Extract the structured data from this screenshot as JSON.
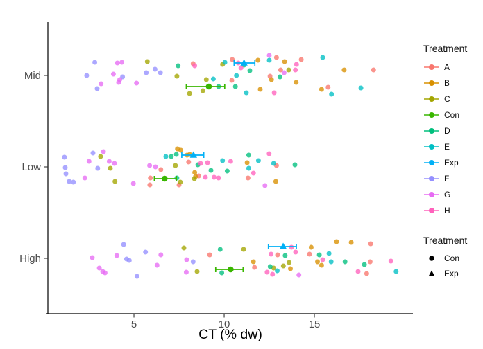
{
  "legend": {
    "title": "Treatment",
    "items": [
      {
        "label": "A",
        "color": "#F8766D"
      },
      {
        "label": "B",
        "color": "#D89000"
      },
      {
        "label": "C",
        "color": "#A3A500"
      },
      {
        "label": "Con",
        "color": "#39B600"
      },
      {
        "label": "D",
        "color": "#00BF7D"
      },
      {
        "label": "E",
        "color": "#00BFC4"
      },
      {
        "label": "Exp",
        "color": "#00B0F6"
      },
      {
        "label": "F",
        "color": "#9590FF"
      },
      {
        "label": "G",
        "color": "#E76BF3"
      },
      {
        "label": "H",
        "color": "#FF62BC"
      }
    ],
    "shape_title": "Treatment",
    "shape_items": [
      {
        "label": "Con",
        "shape": "circle"
      },
      {
        "label": "Exp",
        "shape": "triangle"
      }
    ]
  },
  "chart_data": {
    "type": "scatter",
    "title": "",
    "xlabel": "CT (% dw)",
    "ylabel": "",
    "x_ticks": [
      5,
      10,
      15
    ],
    "xlim": [
      0.23,
      20.46
    ],
    "grid": false,
    "legend_position": "right",
    "categories": [
      "Mid",
      "Low",
      "High"
    ],
    "treatments": [
      "A",
      "B",
      "C",
      "Con",
      "D",
      "E",
      "Exp",
      "F",
      "G",
      "H"
    ],
    "colors": {
      "A": "#F8766D",
      "B": "#D89000",
      "C": "#A3A500",
      "Con": "#39B600",
      "D": "#00BF7D",
      "E": "#00BFC4",
      "Exp": "#00B0F6",
      "F": "#9590FF",
      "G": "#E76BF3",
      "H": "#FF62BC"
    },
    "point_style": {
      "radius": 3.5,
      "opacity": 0.78
    },
    "points": {
      "Mid": [
        [
          "A",
          8.28,
          -17
        ],
        [
          "A",
          10.42,
          7
        ],
        [
          "A",
          10.45,
          -23
        ],
        [
          "A",
          12.54,
          1
        ],
        [
          "A",
          12.9,
          -26
        ],
        [
          "A",
          13.13,
          -8
        ],
        [
          "A",
          14.27,
          -23
        ],
        [
          "A",
          15.76,
          17
        ],
        [
          "A",
          18.28,
          -8
        ],
        [
          "B",
          11.87,
          -22
        ],
        [
          "B",
          12.0,
          20
        ],
        [
          "B",
          12.62,
          6
        ],
        [
          "B",
          13.35,
          -20
        ],
        [
          "B",
          13.99,
          10
        ],
        [
          "B",
          15.4,
          20
        ],
        [
          "B",
          16.65,
          -8
        ],
        [
          "C",
          5.74,
          -20
        ],
        [
          "C",
          7.38,
          1
        ],
        [
          "C",
          8.08,
          26
        ],
        [
          "C",
          8.82,
          22
        ],
        [
          "C",
          9.01,
          6
        ],
        [
          "C",
          9.91,
          -16
        ],
        [
          "C",
          13.58,
          -8
        ],
        [
          "D",
          7.45,
          -14
        ],
        [
          "D",
          9.69,
          16
        ],
        [
          "D",
          10.62,
          16
        ],
        [
          "D",
          11.1,
          -15
        ],
        [
          "D",
          11.42,
          -7
        ],
        [
          "D",
          13.09,
          2
        ],
        [
          "E",
          9.4,
          5
        ],
        [
          "E",
          10.04,
          -19
        ],
        [
          "E",
          10.68,
          0
        ],
        [
          "E",
          11.23,
          25
        ],
        [
          "E",
          12.5,
          -22
        ],
        [
          "E",
          15.46,
          -26
        ],
        [
          "E",
          15.95,
          27
        ],
        [
          "E",
          17.58,
          18
        ],
        [
          "F",
          2.38,
          0
        ],
        [
          "F",
          2.83,
          -19
        ],
        [
          "F",
          2.96,
          19
        ],
        [
          "F",
          4.37,
          2
        ],
        [
          "F",
          5.68,
          -4
        ],
        [
          "F",
          6.17,
          -9
        ],
        [
          "F",
          6.47,
          -4
        ],
        [
          "G",
          3.18,
          12
        ],
        [
          "G",
          3.86,
          -2
        ],
        [
          "G",
          4.08,
          -18
        ],
        [
          "G",
          4.33,
          -19
        ],
        [
          "G",
          4.15,
          10
        ],
        [
          "G",
          4.21,
          6
        ],
        [
          "G",
          5.14,
          11
        ],
        [
          "G",
          12.5,
          -29
        ],
        [
          "G",
          13.32,
          -4
        ],
        [
          "H",
          8.37,
          -14
        ],
        [
          "H",
          10.78,
          -18
        ],
        [
          "H",
          10.93,
          -11
        ],
        [
          "H",
          12.77,
          25
        ],
        [
          "H",
          13.95,
          -8
        ],
        [
          "H",
          14.01,
          -16
        ]
      ],
      "Low": [
        [
          "A",
          5.88,
          26
        ],
        [
          "A",
          5.91,
          16
        ],
        [
          "A",
          6.49,
          4
        ],
        [
          "A",
          7.5,
          26
        ],
        [
          "A",
          8.03,
          -7
        ],
        [
          "A",
          8.59,
          13
        ],
        [
          "A",
          11.32,
          16
        ],
        [
          "A",
          12.9,
          -2
        ],
        [
          "B",
          7.41,
          -26
        ],
        [
          "B",
          7.6,
          -24
        ],
        [
          "B",
          7.94,
          -17
        ],
        [
          "B",
          8.09,
          -18
        ],
        [
          "B",
          8.37,
          8
        ],
        [
          "B",
          8.41,
          14
        ],
        [
          "B",
          11.27,
          -6
        ],
        [
          "B",
          12.86,
          21
        ],
        [
          "C",
          3.15,
          -15
        ],
        [
          "C",
          3.69,
          2
        ],
        [
          "C",
          3.95,
          21
        ],
        [
          "C",
          7.3,
          -2
        ],
        [
          "C",
          7.57,
          22
        ],
        [
          "C",
          8.35,
          17
        ],
        [
          "D",
          7.07,
          -15
        ],
        [
          "D",
          7.35,
          -18
        ],
        [
          "D",
          7.38,
          16
        ],
        [
          "D",
          8.54,
          -3
        ],
        [
          "D",
          9.27,
          5
        ],
        [
          "D",
          10.17,
          6
        ],
        [
          "D",
          11.36,
          -17
        ],
        [
          "D",
          13.92,
          -3
        ],
        [
          "E",
          6.77,
          -15
        ],
        [
          "E",
          9.91,
          -9
        ],
        [
          "E",
          11.36,
          2
        ],
        [
          "E",
          11.9,
          -9
        ],
        [
          "E",
          12.74,
          -5
        ],
        [
          "F",
          1.15,
          -14
        ],
        [
          "F",
          1.19,
          1
        ],
        [
          "F",
          1.23,
          10
        ],
        [
          "F",
          1.41,
          21
        ],
        [
          "F",
          1.64,
          22
        ],
        [
          "F",
          2.73,
          -20
        ],
        [
          "F",
          2.99,
          2
        ],
        [
          "G",
          2.28,
          16
        ],
        [
          "G",
          2.51,
          -8
        ],
        [
          "G",
          3.31,
          -22
        ],
        [
          "G",
          3.63,
          -8
        ],
        [
          "G",
          3.92,
          -5
        ],
        [
          "G",
          4.97,
          24
        ],
        [
          "G",
          5.87,
          -2
        ],
        [
          "G",
          6.19,
          0
        ],
        [
          "G",
          12.26,
          27
        ],
        [
          "H",
          8.69,
          -5
        ],
        [
          "H",
          9.08,
          -6
        ],
        [
          "H",
          8.96,
          15
        ],
        [
          "H",
          9.44,
          15
        ],
        [
          "H",
          9.69,
          16
        ],
        [
          "H",
          10.36,
          -8
        ],
        [
          "H",
          11.62,
          9
        ],
        [
          "H",
          12.49,
          -19
        ]
      ],
      "High": [
        [
          "A",
          9.2,
          -5
        ],
        [
          "A",
          11.68,
          13
        ],
        [
          "A",
          12.96,
          -5
        ],
        [
          "A",
          14.73,
          -6
        ],
        [
          "A",
          17.9,
          22
        ],
        [
          "A",
          18.09,
          5
        ],
        [
          "A",
          18.12,
          -21
        ],
        [
          "B",
          11.62,
          5
        ],
        [
          "B",
          13.67,
          15
        ],
        [
          "B",
          14.82,
          -16
        ],
        [
          "B",
          15.17,
          5
        ],
        [
          "B",
          15.4,
          10
        ],
        [
          "B",
          16.23,
          -24
        ],
        [
          "B",
          17.04,
          -23
        ],
        [
          "C",
          7.77,
          -15
        ],
        [
          "C",
          8.5,
          19
        ],
        [
          "C",
          11.08,
          -13
        ],
        [
          "C",
          12.74,
          14
        ],
        [
          "C",
          13.28,
          11
        ],
        [
          "C",
          13.6,
          6
        ],
        [
          "D",
          9.78,
          -13
        ],
        [
          "D",
          9.87,
          21
        ],
        [
          "D",
          12.55,
          12
        ],
        [
          "D",
          13.38,
          -4
        ],
        [
          "D",
          15.27,
          -5
        ],
        [
          "D",
          16.7,
          5
        ],
        [
          "D",
          17.77,
          9
        ],
        [
          "E",
          12.94,
          18
        ],
        [
          "E",
          15.81,
          -7
        ],
        [
          "E",
          15.93,
          5
        ],
        [
          "E",
          19.53,
          19
        ],
        [
          "F",
          4.43,
          -20
        ],
        [
          "F",
          4.59,
          1
        ],
        [
          "F",
          4.74,
          3
        ],
        [
          "F",
          5.17,
          26
        ],
        [
          "F",
          5.64,
          -9
        ],
        [
          "F",
          8.28,
          5
        ],
        [
          "G",
          2.69,
          -1
        ],
        [
          "G",
          3.08,
          14
        ],
        [
          "G",
          3.27,
          19
        ],
        [
          "G",
          3.4,
          21
        ],
        [
          "G",
          4.05,
          -4
        ],
        [
          "G",
          6.28,
          10
        ],
        [
          "G",
          6.49,
          -5
        ],
        [
          "G",
          7.9,
          20
        ],
        [
          "G",
          7.92,
          2
        ],
        [
          "G",
          14.14,
          24
        ],
        [
          "H",
          12.38,
          20
        ],
        [
          "H",
          12.6,
          -6
        ],
        [
          "H",
          12.68,
          23
        ],
        [
          "H",
          13.73,
          -16
        ],
        [
          "H",
          13.96,
          -9
        ],
        [
          "H",
          15.46,
          2
        ],
        [
          "H",
          17.42,
          19
        ],
        [
          "H",
          19.24,
          4
        ]
      ]
    },
    "pointranges": {
      "Mid": [
        {
          "treatment": "Exp",
          "x": 11.1,
          "lo": 10.55,
          "hi": 11.7,
          "dy": -18
        },
        {
          "treatment": "Con",
          "x": 9.15,
          "lo": 7.9,
          "hi": 10.03,
          "dy": 16
        }
      ],
      "Low": [
        {
          "treatment": "Exp",
          "x": 8.3,
          "lo": 7.65,
          "hi": 8.87,
          "dy": -17
        },
        {
          "treatment": "Con",
          "x": 6.7,
          "lo": 6.13,
          "hi": 7.35,
          "dy": 17
        }
      ],
      "High": [
        {
          "treatment": "Exp",
          "x": 13.27,
          "lo": 12.45,
          "hi": 14.0,
          "dy": -17
        },
        {
          "treatment": "Con",
          "x": 10.36,
          "lo": 9.53,
          "hi": 11.05,
          "dy": 16
        }
      ]
    }
  }
}
